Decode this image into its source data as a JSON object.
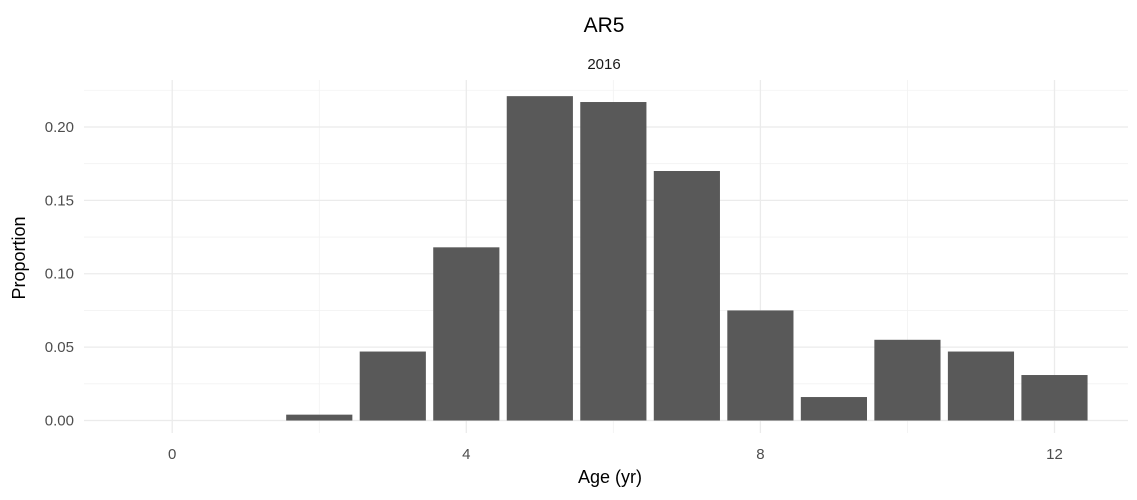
{
  "chart_data": {
    "type": "bar",
    "title": "AR5",
    "facet_label": "2016",
    "xlabel": "Age (yr)",
    "ylabel": "Proportion",
    "x": [
      1,
      2,
      3,
      4,
      5,
      6,
      7,
      8,
      9,
      10,
      11,
      12
    ],
    "values": [
      0.0,
      0.004,
      0.047,
      0.118,
      0.221,
      0.217,
      0.17,
      0.075,
      0.016,
      0.055,
      0.047,
      0.031
    ],
    "xlim": [
      -1.2,
      13.0
    ],
    "ylim": [
      -0.0085,
      0.232
    ],
    "x_ticks": [
      0,
      4,
      8,
      12
    ],
    "x_tick_labels": [
      "0",
      "4",
      "8",
      "12"
    ],
    "y_ticks": [
      0.0,
      0.05,
      0.1,
      0.15,
      0.2
    ],
    "y_tick_labels": [
      "0.00",
      "0.05",
      "0.10",
      "0.15",
      "0.20"
    ],
    "bar_color": "#595959",
    "grid": true,
    "legend": "none"
  }
}
